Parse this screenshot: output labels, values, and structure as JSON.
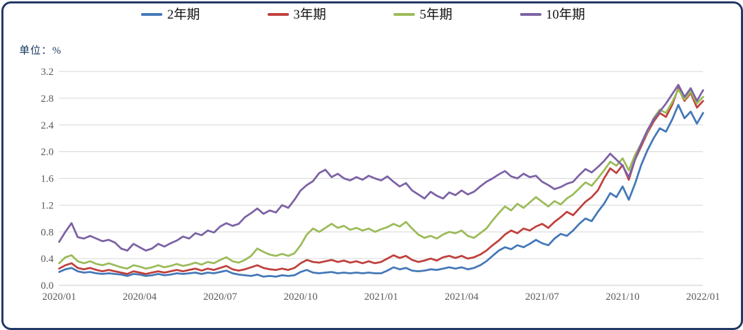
{
  "unit_label": "单位：%",
  "frame": {
    "border_color": "#1f3864",
    "background": "#ffffff"
  },
  "legend": [
    {
      "label": "2年期",
      "color": "#4478b8"
    },
    {
      "label": "3年期",
      "color": "#c0403c"
    },
    {
      "label": "5年期",
      "color": "#9bbb59"
    },
    {
      "label": "10年期",
      "color": "#7c62a5"
    }
  ],
  "chart_data": {
    "type": "line",
    "title": "",
    "xlabel": "",
    "ylabel": "单位：%",
    "ylim": [
      0.0,
      3.2
    ],
    "yticks": [
      "0.0",
      "0.4",
      "0.8",
      "1.2",
      "1.6",
      "2.0",
      "2.4",
      "2.8",
      "3.2"
    ],
    "xticks": [
      "2020/01",
      "2020/04",
      "2020/07",
      "2020/10",
      "2021/01",
      "2021/04",
      "2021/07",
      "2021/10",
      "2022/01"
    ],
    "grid": "horizontal-only",
    "legend_position": "top",
    "x_sampling": "weekly, 105 points from 2020/01 to 2022/01",
    "series": [
      {
        "name": "2年期",
        "color": "#4478b8",
        "values": [
          0.2,
          0.24,
          0.26,
          0.21,
          0.19,
          0.2,
          0.18,
          0.17,
          0.18,
          0.17,
          0.16,
          0.14,
          0.17,
          0.16,
          0.14,
          0.15,
          0.17,
          0.15,
          0.16,
          0.18,
          0.17,
          0.18,
          0.19,
          0.17,
          0.19,
          0.18,
          0.2,
          0.22,
          0.18,
          0.16,
          0.15,
          0.14,
          0.16,
          0.13,
          0.14,
          0.13,
          0.15,
          0.14,
          0.15,
          0.2,
          0.23,
          0.19,
          0.18,
          0.19,
          0.2,
          0.18,
          0.19,
          0.18,
          0.19,
          0.18,
          0.19,
          0.18,
          0.18,
          0.22,
          0.27,
          0.24,
          0.26,
          0.22,
          0.21,
          0.22,
          0.24,
          0.23,
          0.25,
          0.27,
          0.25,
          0.27,
          0.24,
          0.26,
          0.3,
          0.36,
          0.44,
          0.52,
          0.57,
          0.54,
          0.6,
          0.57,
          0.62,
          0.68,
          0.63,
          0.6,
          0.7,
          0.77,
          0.74,
          0.82,
          0.92,
          1.0,
          0.96,
          1.1,
          1.22,
          1.38,
          1.32,
          1.48,
          1.28,
          1.52,
          1.8,
          2.02,
          2.2,
          2.35,
          2.3,
          2.48,
          2.7,
          2.5,
          2.6,
          2.42,
          2.58
        ]
      },
      {
        "name": "3年期",
        "color": "#c0403c",
        "values": [
          0.25,
          0.3,
          0.33,
          0.26,
          0.24,
          0.26,
          0.23,
          0.21,
          0.23,
          0.21,
          0.19,
          0.17,
          0.21,
          0.19,
          0.17,
          0.19,
          0.21,
          0.19,
          0.21,
          0.23,
          0.21,
          0.23,
          0.25,
          0.22,
          0.25,
          0.23,
          0.26,
          0.29,
          0.24,
          0.22,
          0.24,
          0.27,
          0.3,
          0.26,
          0.24,
          0.23,
          0.25,
          0.23,
          0.26,
          0.33,
          0.38,
          0.35,
          0.34,
          0.36,
          0.38,
          0.35,
          0.37,
          0.34,
          0.36,
          0.33,
          0.36,
          0.33,
          0.35,
          0.4,
          0.45,
          0.41,
          0.44,
          0.38,
          0.35,
          0.37,
          0.4,
          0.37,
          0.42,
          0.44,
          0.41,
          0.44,
          0.4,
          0.42,
          0.46,
          0.52,
          0.6,
          0.67,
          0.76,
          0.82,
          0.78,
          0.85,
          0.82,
          0.88,
          0.92,
          0.86,
          0.95,
          1.02,
          1.1,
          1.05,
          1.15,
          1.25,
          1.32,
          1.42,
          1.6,
          1.75,
          1.68,
          1.8,
          1.58,
          1.88,
          2.08,
          2.28,
          2.45,
          2.58,
          2.52,
          2.7,
          2.95,
          2.76,
          2.88,
          2.66,
          2.76
        ]
      },
      {
        "name": "5年期",
        "color": "#9bbb59",
        "values": [
          0.33,
          0.42,
          0.45,
          0.36,
          0.33,
          0.36,
          0.32,
          0.3,
          0.33,
          0.3,
          0.27,
          0.25,
          0.3,
          0.28,
          0.25,
          0.27,
          0.3,
          0.27,
          0.29,
          0.32,
          0.29,
          0.31,
          0.34,
          0.31,
          0.35,
          0.33,
          0.38,
          0.42,
          0.36,
          0.34,
          0.38,
          0.44,
          0.55,
          0.5,
          0.46,
          0.44,
          0.47,
          0.44,
          0.48,
          0.6,
          0.76,
          0.85,
          0.8,
          0.86,
          0.92,
          0.86,
          0.89,
          0.83,
          0.86,
          0.82,
          0.85,
          0.8,
          0.84,
          0.87,
          0.92,
          0.88,
          0.95,
          0.85,
          0.76,
          0.71,
          0.74,
          0.7,
          0.76,
          0.8,
          0.78,
          0.82,
          0.74,
          0.71,
          0.78,
          0.85,
          0.97,
          1.08,
          1.18,
          1.12,
          1.22,
          1.16,
          1.24,
          1.32,
          1.25,
          1.18,
          1.26,
          1.21,
          1.3,
          1.36,
          1.45,
          1.54,
          1.49,
          1.6,
          1.72,
          1.85,
          1.79,
          1.9,
          1.72,
          1.95,
          2.12,
          2.3,
          2.5,
          2.63,
          2.58,
          2.74,
          2.93,
          2.78,
          2.9,
          2.72,
          2.82
        ]
      },
      {
        "name": "10年期",
        "color": "#7c62a5",
        "values": [
          0.65,
          0.8,
          0.93,
          0.72,
          0.7,
          0.74,
          0.7,
          0.66,
          0.68,
          0.64,
          0.55,
          0.52,
          0.62,
          0.57,
          0.52,
          0.55,
          0.62,
          0.58,
          0.63,
          0.67,
          0.73,
          0.7,
          0.78,
          0.75,
          0.82,
          0.79,
          0.88,
          0.93,
          0.89,
          0.92,
          1.02,
          1.08,
          1.15,
          1.07,
          1.12,
          1.09,
          1.2,
          1.16,
          1.28,
          1.42,
          1.5,
          1.56,
          1.68,
          1.73,
          1.62,
          1.67,
          1.6,
          1.57,
          1.62,
          1.58,
          1.64,
          1.6,
          1.57,
          1.63,
          1.55,
          1.48,
          1.53,
          1.42,
          1.36,
          1.3,
          1.4,
          1.34,
          1.3,
          1.39,
          1.35,
          1.42,
          1.36,
          1.4,
          1.48,
          1.55,
          1.6,
          1.66,
          1.71,
          1.63,
          1.6,
          1.67,
          1.62,
          1.64,
          1.55,
          1.5,
          1.44,
          1.47,
          1.52,
          1.55,
          1.65,
          1.74,
          1.69,
          1.77,
          1.86,
          1.97,
          1.88,
          1.79,
          1.62,
          1.88,
          2.12,
          2.32,
          2.48,
          2.6,
          2.72,
          2.86,
          3.0,
          2.82,
          2.95,
          2.76,
          2.92
        ]
      }
    ]
  }
}
